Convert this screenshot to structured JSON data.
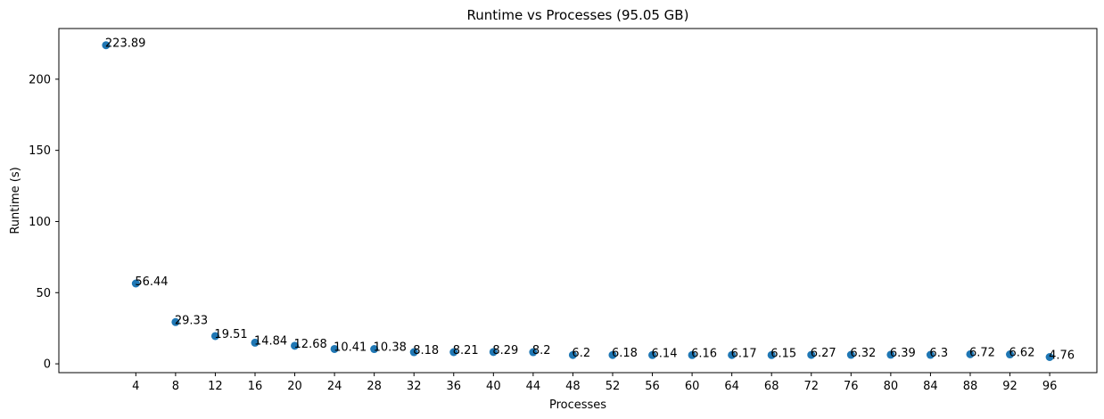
{
  "chart_data": {
    "type": "scatter",
    "title": "Runtime vs Processes (95.05 GB)",
    "xlabel": "Processes",
    "ylabel": "Runtime (s)",
    "x": [
      1,
      4,
      8,
      12,
      16,
      20,
      24,
      28,
      32,
      36,
      40,
      44,
      48,
      52,
      56,
      60,
      64,
      68,
      72,
      76,
      80,
      84,
      88,
      92,
      96
    ],
    "y": [
      223.89,
      56.44,
      29.33,
      19.51,
      14.84,
      12.68,
      10.41,
      10.38,
      8.18,
      8.21,
      8.29,
      8.2,
      6.2,
      6.18,
      6.14,
      6.16,
      6.17,
      6.15,
      6.27,
      6.32,
      6.39,
      6.3,
      6.72,
      6.62,
      4.76
    ],
    "labels": [
      "223.89",
      "56.44",
      "29.33",
      "19.51",
      "14.84",
      "12.68",
      "10.41",
      "10.38",
      "8.18",
      "8.21",
      "8.29",
      "8.2",
      "6.2",
      "6.18",
      "6.14",
      "6.16",
      "6.17",
      "6.15",
      "6.27",
      "6.32",
      "6.39",
      "6.3",
      "6.72",
      "6.62",
      "4.76"
    ],
    "xticks": [
      4,
      8,
      12,
      16,
      20,
      24,
      28,
      32,
      36,
      40,
      44,
      48,
      52,
      56,
      60,
      64,
      68,
      72,
      76,
      80,
      84,
      88,
      92,
      96
    ],
    "yticks": [
      0,
      50,
      100,
      150,
      200
    ],
    "xlim": [
      -3.75,
      100.75
    ],
    "ylim": [
      -6.2,
      235.6
    ],
    "grid": false,
    "marker_color": "#1f77b4"
  }
}
